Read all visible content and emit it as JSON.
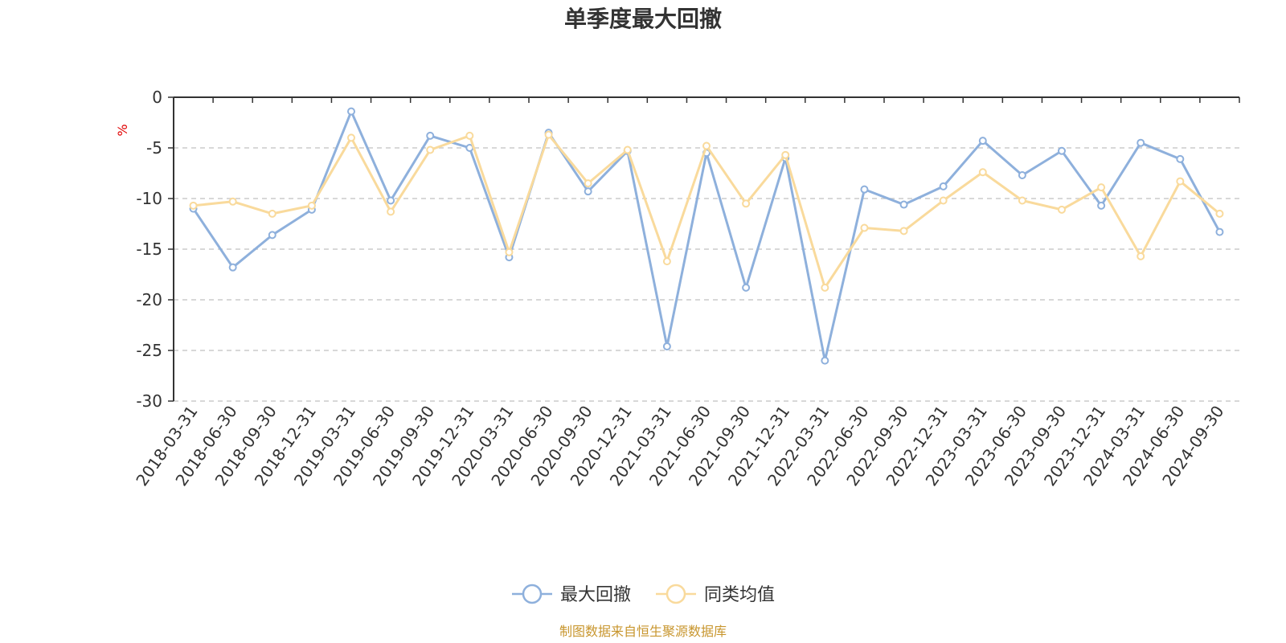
{
  "chart_data": {
    "type": "line",
    "title": "单季度最大回撤",
    "ylabel": "%",
    "ylim": [
      -30,
      0
    ],
    "yticks": [
      0,
      -5,
      -10,
      -15,
      -20,
      -25,
      -30
    ],
    "grid": true,
    "legend_position": "bottom-center",
    "categories": [
      "2018-03-31",
      "2018-06-30",
      "2018-09-30",
      "2018-12-31",
      "2019-03-31",
      "2019-06-30",
      "2019-09-30",
      "2019-12-31",
      "2020-03-31",
      "2020-06-30",
      "2020-09-30",
      "2020-12-31",
      "2021-03-31",
      "2021-06-30",
      "2021-09-30",
      "2021-12-31",
      "2022-03-31",
      "2022-06-30",
      "2022-09-30",
      "2022-12-31",
      "2023-03-31",
      "2023-06-30",
      "2023-09-30",
      "2023-12-31",
      "2024-03-31",
      "2024-06-30",
      "2024-09-30"
    ],
    "series": [
      {
        "name": "最大回撤",
        "color": "#8eb0dc",
        "values": [
          -11.0,
          -16.8,
          -13.6,
          -11.1,
          -1.4,
          -10.2,
          -3.8,
          -5.0,
          -15.8,
          -3.5,
          -9.3,
          -5.3,
          -24.6,
          -5.5,
          -18.8,
          -6.0,
          -26.0,
          -9.1,
          -10.6,
          -8.8,
          -4.3,
          -7.7,
          -5.3,
          -10.7,
          -4.5,
          -6.1,
          -13.3
        ]
      },
      {
        "name": "同类均值",
        "color": "#f9da9c",
        "values": [
          -10.7,
          -10.3,
          -11.5,
          -10.7,
          -4.0,
          -11.3,
          -5.2,
          -3.8,
          -15.3,
          -3.7,
          -8.5,
          -5.2,
          -16.2,
          -4.8,
          -10.5,
          -5.7,
          -18.8,
          -12.9,
          -13.2,
          -10.2,
          -7.4,
          -10.2,
          -11.1,
          -8.9,
          -15.7,
          -8.3,
          -11.5
        ]
      }
    ]
  },
  "source_note": "制图数据来自恒生聚源数据库"
}
